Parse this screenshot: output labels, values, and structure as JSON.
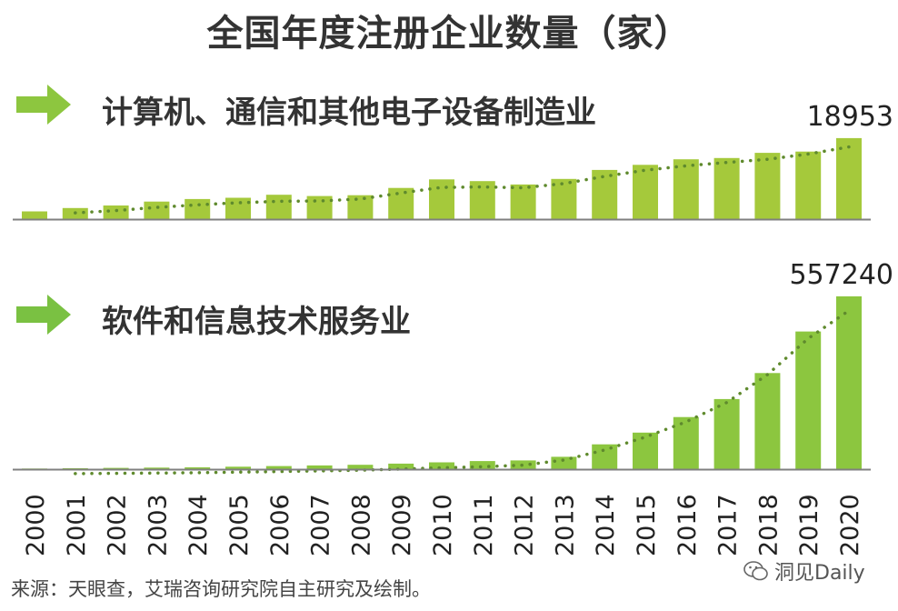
{
  "title": "全国年度注册企业数量（家）",
  "source": "来源：天眼查，艾瑞咨询研究院自主研究及绘制。",
  "watermark": "洞见Daily",
  "colors": {
    "bar_top": "#a5c93b",
    "bar_bottom": "#8cc63f",
    "trend": "#5f8a2d",
    "axis": "#7f7f7f",
    "arrow_top": "#8dc63f",
    "arrow_bottom": "#7ac142"
  },
  "chart_data": [
    {
      "type": "bar",
      "title": "计算机、通信和其他电子设备制造业",
      "categories": [
        "2000",
        "2001",
        "2002",
        "2003",
        "2004",
        "2005",
        "2006",
        "2007",
        "2008",
        "2009",
        "2010",
        "2011",
        "2012",
        "2013",
        "2014",
        "2015",
        "2016",
        "2017",
        "2018",
        "2019",
        "2020"
      ],
      "values": [
        1800,
        2600,
        3200,
        4100,
        4700,
        5000,
        5700,
        5400,
        5600,
        7300,
        9300,
        8900,
        8100,
        9400,
        11500,
        12700,
        14000,
        14300,
        15500,
        15800,
        18953
      ],
      "data_labels": {
        "2020": "18953"
      },
      "trendline": "dotted",
      "ylim": [
        0,
        20000
      ]
    },
    {
      "type": "bar",
      "title": "软件和信息技术服务业",
      "categories": [
        "2000",
        "2001",
        "2002",
        "2003",
        "2004",
        "2005",
        "2006",
        "2007",
        "2008",
        "2009",
        "2010",
        "2011",
        "2012",
        "2013",
        "2014",
        "2015",
        "2016",
        "2017",
        "2018",
        "2019",
        "2020"
      ],
      "values": [
        2000,
        3000,
        4000,
        5000,
        6000,
        8000,
        10000,
        12000,
        14000,
        18000,
        22000,
        26000,
        28000,
        40000,
        80000,
        118000,
        168000,
        226000,
        310000,
        444000,
        557240
      ],
      "data_labels": {
        "2020": "557240"
      },
      "trendline": "dotted",
      "ylim": [
        0,
        560000
      ]
    }
  ]
}
